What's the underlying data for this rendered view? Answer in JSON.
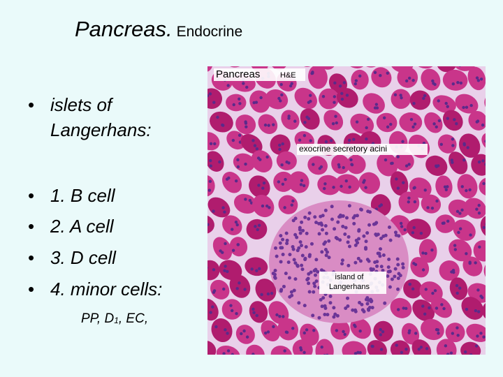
{
  "title": {
    "main": "Pancreas.",
    "sub": "Endocrine"
  },
  "bullets": [
    "islets of Langerhans:",
    "1. B cell",
    "2. A cell",
    "3. D cell",
    "4. minor cells:"
  ],
  "note": {
    "parts": [
      "PP, D",
      "1",
      ", EC,"
    ]
  },
  "image": {
    "title": "Pancreas",
    "stain": "H&E",
    "labels": [
      "exocrine secretory acini",
      "island of Langerhans"
    ]
  }
}
